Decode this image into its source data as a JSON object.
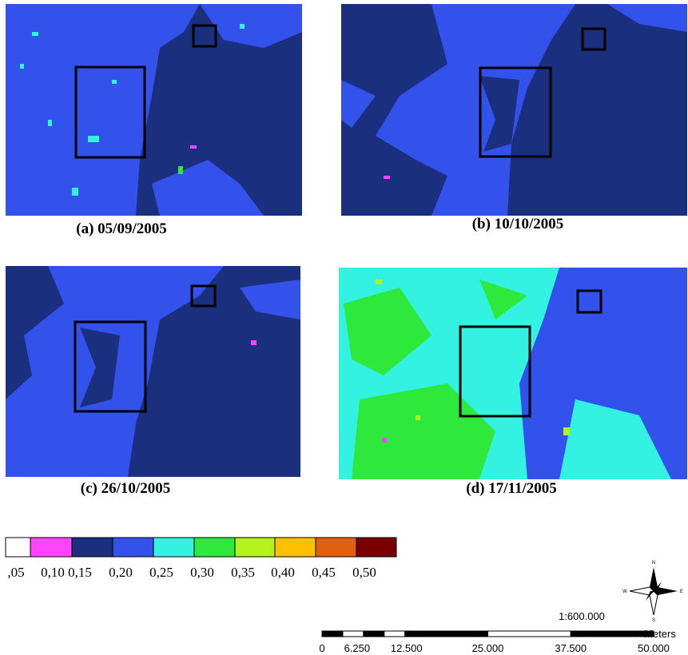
{
  "panels": [
    {
      "caption": "(a) 05/09/2005"
    },
    {
      "caption": "(b) 10/10/2005"
    },
    {
      "caption": "(c) 26/10/2005"
    },
    {
      "caption": "(d) 17/11/2005"
    }
  ],
  "legend": {
    "items": [
      {
        "label": ",05",
        "color": "#ffffff"
      },
      {
        "label": "0,10",
        "color": "#ff44ff"
      },
      {
        "label": "0,15",
        "color": "#1a2f7e"
      },
      {
        "label": "0,20",
        "color": "#3352ec"
      },
      {
        "label": "0,25",
        "color": "#33f2e2"
      },
      {
        "label": "0,30",
        "color": "#2ee83c"
      },
      {
        "label": "0,35",
        "color": "#b4f21c"
      },
      {
        "label": "0,40",
        "color": "#ffc000"
      },
      {
        "label": "0,45",
        "color": "#e0600f"
      },
      {
        "label": "0,50",
        "color": "#7a0000"
      }
    ]
  },
  "scale": {
    "ratio": "1:600.000",
    "unit": "Meters",
    "ticks": [
      "0",
      "6.250",
      "12.500",
      "25.000",
      "37.500",
      "50.000"
    ]
  },
  "compass": {
    "north": "N",
    "south": "S",
    "east": "E",
    "west": "W"
  }
}
